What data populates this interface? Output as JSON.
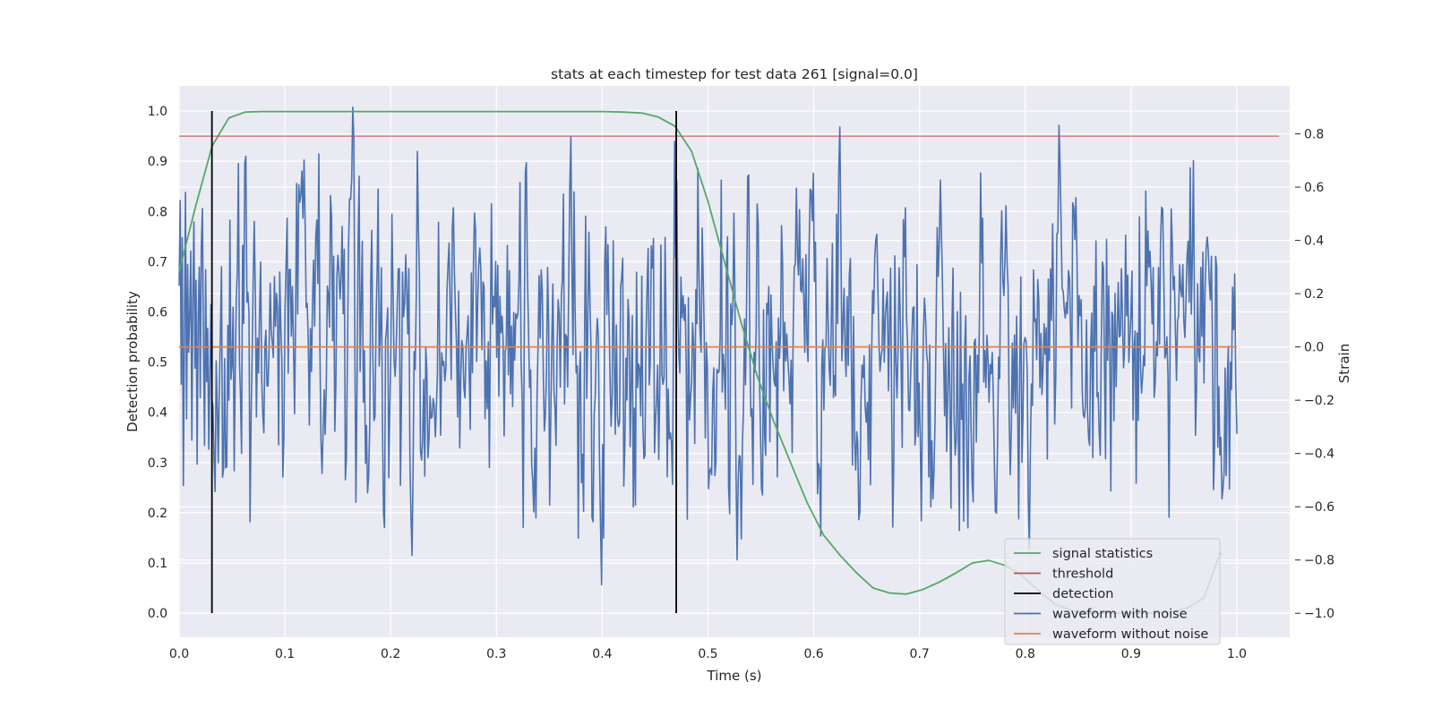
{
  "chart_data": {
    "type": "line",
    "title": "stats at each timestep for test data 261 [signal=0.0]",
    "xlabel": "Time (s)",
    "ylabel": "Detection probability",
    "y2label": "Strain",
    "xlim": [
      0.0,
      1.05
    ],
    "ylim": [
      -0.048,
      1.05
    ],
    "y2lim": [
      -1.09,
      0.98
    ],
    "xticks": [
      "0.0",
      "0.1",
      "0.2",
      "0.3",
      "0.4",
      "0.5",
      "0.6",
      "0.7",
      "0.8",
      "0.9",
      "1.0"
    ],
    "yticks": [
      "0.0",
      "0.1",
      "0.2",
      "0.3",
      "0.4",
      "0.5",
      "0.6",
      "0.7",
      "0.8",
      "0.9",
      "1.0"
    ],
    "y2ticks": [
      "−1.0",
      "−0.8",
      "−0.6",
      "−0.4",
      "−0.2",
      "0.0",
      "0.2",
      "0.4",
      "0.6",
      "0.8"
    ],
    "grid": true,
    "legend_position": "lower right",
    "colors": {
      "background": "#eaeaf2",
      "grid": "#ffffff",
      "signal_statistics": "#55a868",
      "threshold": "#c44e52",
      "detection": "#000000",
      "waveform_with_noise": "#4c72b0",
      "waveform_without_noise": "#dd8452"
    },
    "series": [
      {
        "name": "signal statistics",
        "axis": "left",
        "x": [
          0.0,
          0.0156,
          0.0312,
          0.0469,
          0.0625,
          0.0781,
          0.0938,
          0.1094,
          0.125,
          0.15,
          0.2,
          0.25,
          0.3,
          0.35,
          0.4,
          0.42,
          0.4375,
          0.4531,
          0.4688,
          0.4844,
          0.5,
          0.5156,
          0.5312,
          0.5469,
          0.5625,
          0.5781,
          0.5938,
          0.6094,
          0.625,
          0.6406,
          0.6562,
          0.6719,
          0.6875,
          0.7031,
          0.7188,
          0.7344,
          0.75,
          0.7656,
          0.7812,
          0.7969,
          0.8125,
          0.8281,
          0.8438,
          0.8594,
          0.875,
          0.8906,
          0.9062,
          0.9219,
          0.9375,
          0.9531,
          0.9688,
          0.9844
        ],
        "y": [
          0.68,
          0.81,
          0.93,
          0.986,
          0.998,
          0.999,
          0.999,
          0.999,
          0.999,
          0.999,
          0.999,
          0.999,
          0.999,
          0.999,
          0.999,
          0.998,
          0.996,
          0.988,
          0.97,
          0.92,
          0.82,
          0.7,
          0.58,
          0.47,
          0.38,
          0.3,
          0.22,
          0.155,
          0.115,
          0.08,
          0.05,
          0.04,
          0.038,
          0.047,
          0.062,
          0.08,
          0.1,
          0.105,
          0.095,
          0.075,
          0.045,
          0.018,
          0.005,
          0.0,
          0.0,
          0.0,
          0.0,
          0.0,
          0.002,
          0.01,
          0.03,
          0.12
        ]
      },
      {
        "name": "threshold",
        "axis": "left",
        "x": [
          0.0,
          1.04
        ],
        "y": [
          0.95,
          0.95
        ]
      },
      {
        "name": "detection",
        "axis": "left",
        "x": [
          0.031,
          0.47
        ],
        "y_from": 0.0,
        "y_to": 1.0
      },
      {
        "name": "waveform with noise",
        "axis": "right",
        "x_start": 0.0,
        "x_end": 1.0,
        "samples": 1000,
        "range": [
          -0.94,
          0.9
        ],
        "y_sample": [
          0.23,
          0.55,
          -0.14,
          0.41,
          -0.52,
          0.05,
          0.58,
          -0.27,
          0.31,
          -0.02,
          0.12,
          0.36,
          -0.35,
          0.2,
          0.47,
          -0.08,
          0.25,
          -0.44,
          0.11,
          0.3,
          -0.19,
          0.38,
          0.52,
          0.0,
          -0.37,
          0.29,
          -0.13,
          0.07
        ]
      },
      {
        "name": "waveform without noise",
        "axis": "right",
        "x": [
          0.0,
          1.0
        ],
        "y": [
          0.0,
          0.0
        ]
      }
    ],
    "legend": [
      "signal statistics",
      "threshold",
      "detection",
      "waveform with noise",
      "waveform without noise"
    ]
  }
}
